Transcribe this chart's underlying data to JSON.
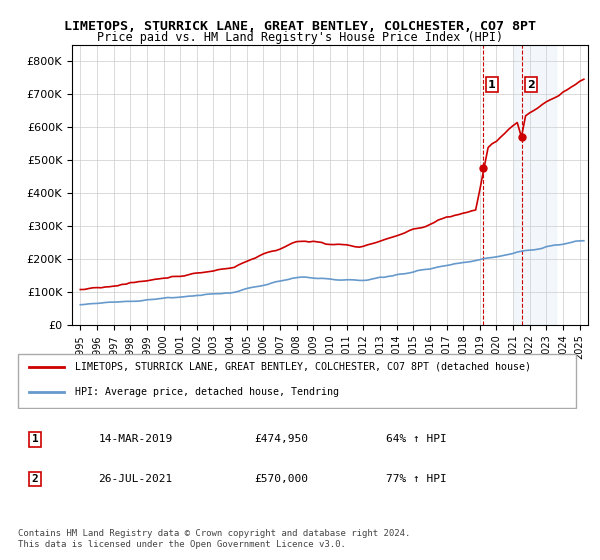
{
  "title": "LIMETOPS, STURRICK LANE, GREAT BENTLEY, COLCHESTER, CO7 8PT",
  "subtitle": "Price paid vs. HM Land Registry's House Price Index (HPI)",
  "legend_line1": "LIMETOPS, STURRICK LANE, GREAT BENTLEY, COLCHESTER, CO7 8PT (detached house)",
  "legend_line2": "HPI: Average price, detached house, Tendring",
  "sale1_label": "1",
  "sale1_date": "14-MAR-2019",
  "sale1_price": "£474,950",
  "sale1_hpi": "64% ↑ HPI",
  "sale1_year": 2019.2,
  "sale1_value": 474950,
  "sale2_label": "2",
  "sale2_date": "26-JUL-2021",
  "sale2_price": "£570,000",
  "sale2_hpi": "77% ↑ HPI",
  "sale2_year": 2021.55,
  "sale2_value": 570000,
  "footer": "Contains HM Land Registry data © Crown copyright and database right 2024.\nThis data is licensed under the Open Government Licence v3.0.",
  "hpi_color": "#6699cc",
  "price_color": "#cc0000",
  "marker_color": "#cc0000",
  "vline_color": "#cc0000",
  "ylim_max": 850000,
  "ylim_min": 0,
  "xlim_min": 1994.5,
  "xlim_max": 2025.5,
  "background_color": "#ffffff",
  "grid_color": "#cccccc"
}
